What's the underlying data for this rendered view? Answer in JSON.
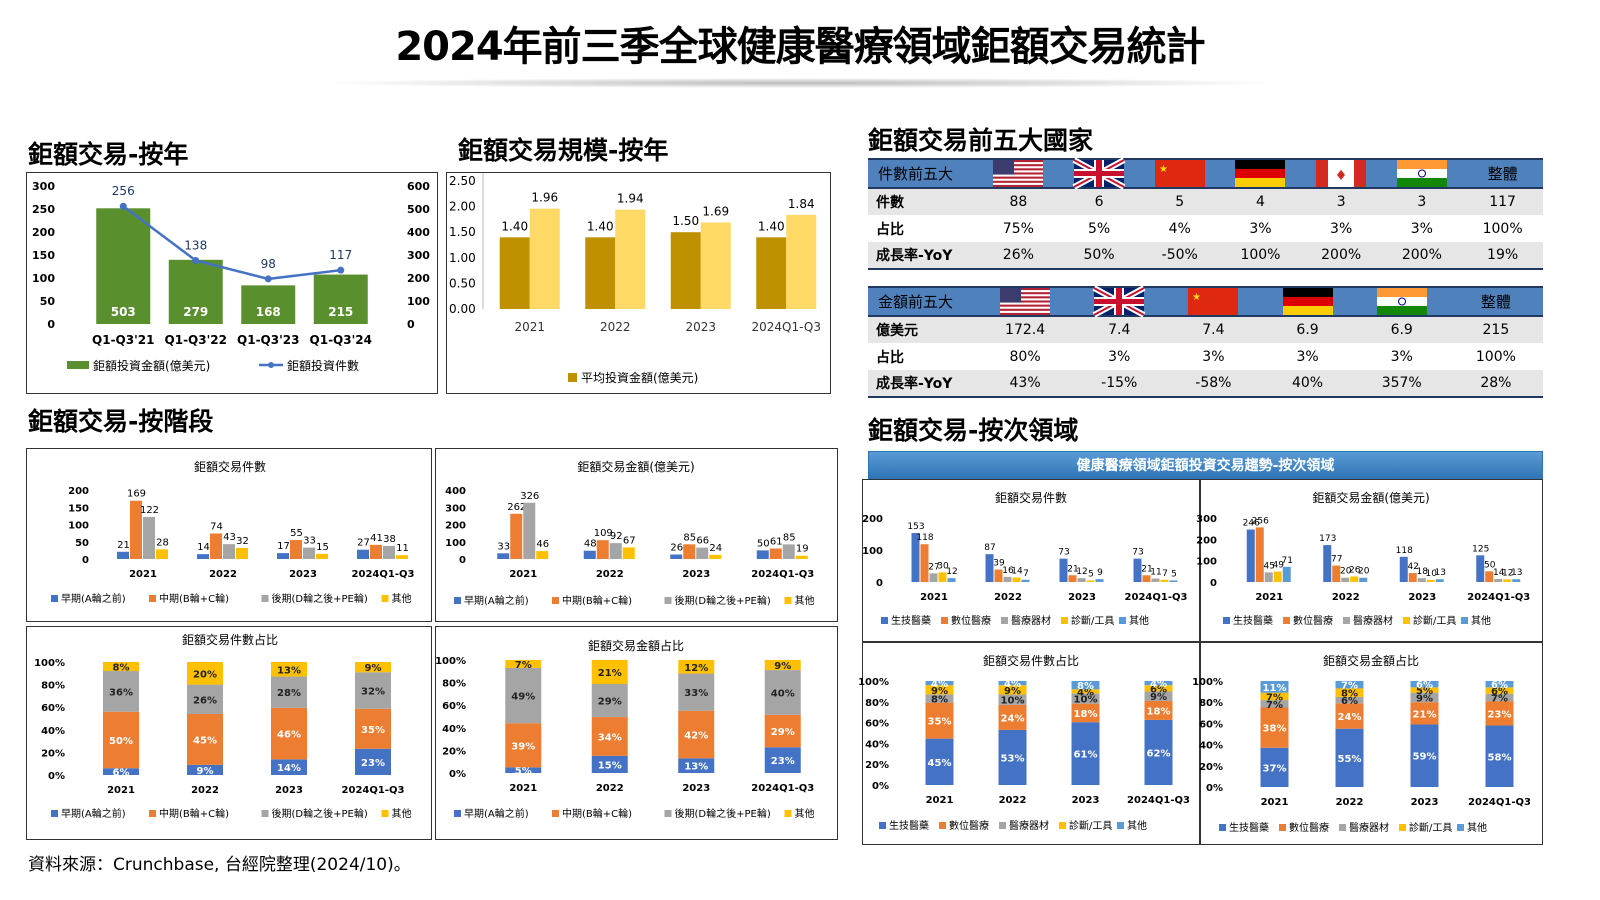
{
  "title": "2024年前三季全球健康醫療領域鉅額交易統計",
  "sections": {
    "by_year": "鉅額交易-按年",
    "scale_by_year": "鉅額交易規模-按年",
    "top5": "鉅額交易前五大國家",
    "by_stage": "鉅額交易-按階段",
    "by_subfield": "鉅額交易-按次領域"
  },
  "subfield_banner": "健康醫療領域鉅額投資交易趨勢-按次領域",
  "source": "資料來源：Crunchbase, 台經院整理(2024/10)。",
  "colors": {
    "green": "#5a8f2e",
    "blue": "#4472c4",
    "orange": "#ed7d31",
    "gray": "#a5a5a5",
    "yellow": "#ffc000",
    "lightblue": "#5b9bd5",
    "gold": "#bf9000",
    "lightgold": "#ffd966"
  },
  "count_table": {
    "header": "件數前五大",
    "total_header": "整體",
    "flags": [
      "us-flag",
      "uk-flag",
      "china-flag",
      "germany-flag",
      "canada-flag",
      "india-flag"
    ],
    "rows": [
      {
        "label": "件數",
        "values": [
          "88",
          "6",
          "5",
          "4",
          "3",
          "3",
          "117"
        ]
      },
      {
        "label": "占比",
        "values": [
          "75%",
          "5%",
          "4%",
          "3%",
          "3%",
          "3%",
          "100%"
        ]
      },
      {
        "label": "成長率-YoY",
        "values": [
          "26%",
          "50%",
          "-50%",
          "100%",
          "200%",
          "200%",
          "19%"
        ]
      }
    ]
  },
  "amount_table": {
    "header": "金額前五大",
    "total_header": "整體",
    "flags": [
      "us-flag",
      "uk-flag",
      "china-flag",
      "germany-flag",
      "india-flag"
    ],
    "rows": [
      {
        "label": "億美元",
        "values": [
          "172.4",
          "7.4",
          "7.4",
          "6.9",
          "6.9",
          "215"
        ]
      },
      {
        "label": "占比",
        "values": [
          "80%",
          "3%",
          "3%",
          "3%",
          "3%",
          "100%"
        ]
      },
      {
        "label": "成長率-YoY",
        "values": [
          "43%",
          "-15%",
          "-58%",
          "40%",
          "357%",
          "28%"
        ]
      }
    ]
  },
  "chart_data": [
    {
      "id": "year",
      "type": "bar+line",
      "categories": [
        "Q1-Q3'21",
        "Q1-Q3'22",
        "Q1-Q3'23",
        "Q1-Q3'24"
      ],
      "series": [
        {
          "name": "鉅額投資金額(億美元)",
          "type": "bar",
          "axis": "right",
          "values": [
            503,
            279,
            168,
            215
          ]
        },
        {
          "name": "鉅額投資件數",
          "type": "line",
          "axis": "left",
          "values": [
            256,
            138,
            98,
            117
          ]
        }
      ],
      "ylim": [
        0,
        300
      ],
      "y2lim": [
        0,
        600
      ],
      "yticks": [
        "0",
        "50",
        "100",
        "150",
        "200",
        "250",
        "300"
      ],
      "y2ticks": [
        "0",
        "100",
        "200",
        "300",
        "400",
        "500",
        "600"
      ]
    },
    {
      "id": "scale",
      "type": "bar",
      "categories": [
        "2021",
        "2022",
        "2023",
        "2024Q1-Q3"
      ],
      "series": [
        {
          "name": "",
          "values": [
            1.4,
            1.4,
            1.5,
            1.4
          ]
        },
        {
          "name": "平均投資金額(億美元)",
          "values": [
            1.96,
            1.94,
            1.69,
            1.84
          ]
        }
      ],
      "value_labels": [
        [
          "1.40",
          "1.40",
          "1.50",
          "1.40"
        ],
        [
          "1.96",
          "1.94",
          "1.69",
          "1.84"
        ]
      ],
      "ylim": [
        0,
        2.5
      ],
      "yticks": [
        "0.00",
        "0.50",
        "1.00",
        "1.50",
        "2.00",
        "2.50"
      ]
    },
    {
      "id": "stage_count",
      "type": "bar",
      "title": "鉅額交易件數",
      "categories": [
        "2021",
        "2022",
        "2023",
        "2024Q1-Q3"
      ],
      "series": [
        {
          "name": "早期(A輪之前)",
          "values": [
            21,
            14,
            17,
            27
          ]
        },
        {
          "name": "中期(B輪+C輪)",
          "values": [
            169,
            74,
            55,
            41
          ]
        },
        {
          "name": "後期(D輪之後+PE輪)",
          "values": [
            122,
            43,
            33,
            38
          ]
        },
        {
          "name": "其他",
          "values": [
            28,
            32,
            15,
            11
          ]
        }
      ],
      "ylim": [
        0,
        200
      ],
      "yticks": [
        "0",
        "50",
        "100",
        "150",
        "200"
      ]
    },
    {
      "id": "stage_amount",
      "type": "bar",
      "title": "鉅額交易金額(億美元)",
      "categories": [
        "2021",
        "2022",
        "2023",
        "2024Q1-Q3"
      ],
      "series": [
        {
          "name": "早期(A輪之前)",
          "values": [
            33,
            48,
            26,
            50
          ]
        },
        {
          "name": "中期(B輪+C輪)",
          "values": [
            262,
            109,
            85,
            61
          ]
        },
        {
          "name": "後期(D輪之後+PE輪)",
          "values": [
            326,
            92,
            66,
            85
          ]
        },
        {
          "name": "其他",
          "values": [
            46,
            67,
            24,
            19
          ]
        }
      ],
      "ylim": [
        0,
        400
      ],
      "yticks": [
        "0",
        "100",
        "200",
        "300",
        "400"
      ]
    },
    {
      "id": "stage_count_pct",
      "type": "stacked-bar-100",
      "title": "鉅額交易件數占比",
      "categories": [
        "2021",
        "2022",
        "2023",
        "2024Q1-Q3"
      ],
      "series": [
        {
          "name": "早期(A輪之前)",
          "values": [
            6,
            9,
            14,
            23
          ]
        },
        {
          "name": "中期(B輪+C輪)",
          "values": [
            50,
            45,
            46,
            35
          ]
        },
        {
          "name": "後期(D輪之後+PE輪)",
          "values": [
            36,
            26,
            28,
            32
          ]
        },
        {
          "name": "其他",
          "values": [
            8,
            20,
            13,
            9
          ]
        }
      ],
      "yticks": [
        "0%",
        "20%",
        "40%",
        "60%",
        "80%",
        "100%"
      ]
    },
    {
      "id": "stage_amount_pct",
      "type": "stacked-bar-100",
      "title": "鉅額交易金額占比",
      "categories": [
        "2021",
        "2022",
        "2023",
        "2024Q1-Q3"
      ],
      "series": [
        {
          "name": "早期(A輪之前)",
          "values": [
            5,
            15,
            13,
            23
          ]
        },
        {
          "name": "中期(B輪+C輪)",
          "values": [
            39,
            34,
            42,
            29
          ]
        },
        {
          "name": "後期(D輪之後+PE輪)",
          "values": [
            49,
            29,
            33,
            40
          ]
        },
        {
          "name": "其他",
          "values": [
            7,
            21,
            12,
            9
          ]
        }
      ],
      "yticks": [
        "0%",
        "20%",
        "40%",
        "60%",
        "80%",
        "100%"
      ]
    },
    {
      "id": "sub_count",
      "type": "bar",
      "title": "鉅額交易件數",
      "categories": [
        "2021",
        "2022",
        "2023",
        "2024Q1-Q3"
      ],
      "series": [
        {
          "name": "生技醫藥",
          "values": [
            153,
            87,
            73,
            73
          ]
        },
        {
          "name": "數位醫療",
          "values": [
            118,
            39,
            21,
            21
          ]
        },
        {
          "name": "醫療器材",
          "values": [
            27,
            16,
            12,
            11
          ]
        },
        {
          "name": "診斷/工具",
          "values": [
            30,
            14,
            5,
            7
          ]
        },
        {
          "name": "其他",
          "values": [
            12,
            7,
            9,
            5
          ]
        }
      ],
      "ylim": [
        0,
        200
      ],
      "yticks": [
        "0",
        "100",
        "200"
      ]
    },
    {
      "id": "sub_amount",
      "type": "bar",
      "title": "鉅額交易金額(億美元)",
      "categories": [
        "2021",
        "2022",
        "2023",
        "2024Q1-Q3"
      ],
      "series": [
        {
          "name": "生技醫藥",
          "values": [
            246,
            173,
            118,
            125
          ]
        },
        {
          "name": "數位醫療",
          "values": [
            256,
            77,
            42,
            50
          ]
        },
        {
          "name": "醫療器材",
          "values": [
            45,
            20,
            18,
            14
          ]
        },
        {
          "name": "診斷/工具",
          "values": [
            49,
            26,
            10,
            12
          ]
        },
        {
          "name": "其他",
          "values": [
            71,
            20,
            13,
            13
          ]
        }
      ],
      "ylim": [
        0,
        300
      ],
      "yticks": [
        "0",
        "100",
        "200",
        "300"
      ]
    },
    {
      "id": "sub_count_pct",
      "type": "stacked-bar-100",
      "title": "鉅額交易件數占比",
      "categories": [
        "2021",
        "2022",
        "2023",
        "2024Q1-Q3"
      ],
      "series": [
        {
          "name": "生技醫藥",
          "values": [
            45,
            53,
            61,
            62
          ]
        },
        {
          "name": "數位醫療",
          "values": [
            35,
            24,
            18,
            18
          ]
        },
        {
          "name": "醫療器材",
          "values": [
            8,
            10,
            10,
            9
          ]
        },
        {
          "name": "診斷/工具",
          "values": [
            9,
            9,
            4,
            6
          ]
        },
        {
          "name": "其他",
          "values": [
            4,
            4,
            8,
            4
          ]
        }
      ],
      "yticks": [
        "0%",
        "20%",
        "40%",
        "60%",
        "80%",
        "100%"
      ]
    },
    {
      "id": "sub_amount_pct",
      "type": "stacked-bar-100",
      "title": "鉅額交易金額占比",
      "categories": [
        "2021",
        "2022",
        "2023",
        "2024Q1-Q3"
      ],
      "series": [
        {
          "name": "生技醫藥",
          "values": [
            37,
            55,
            59,
            58
          ]
        },
        {
          "name": "數位醫療",
          "values": [
            38,
            24,
            21,
            23
          ]
        },
        {
          "name": "醫療器材",
          "values": [
            7,
            6,
            9,
            7
          ]
        },
        {
          "name": "診斷/工具",
          "values": [
            7,
            8,
            5,
            6
          ]
        },
        {
          "name": "其他",
          "values": [
            11,
            7,
            6,
            6
          ]
        }
      ],
      "yticks": [
        "0%",
        "20%",
        "40%",
        "60%",
        "80%",
        "100%"
      ]
    }
  ]
}
